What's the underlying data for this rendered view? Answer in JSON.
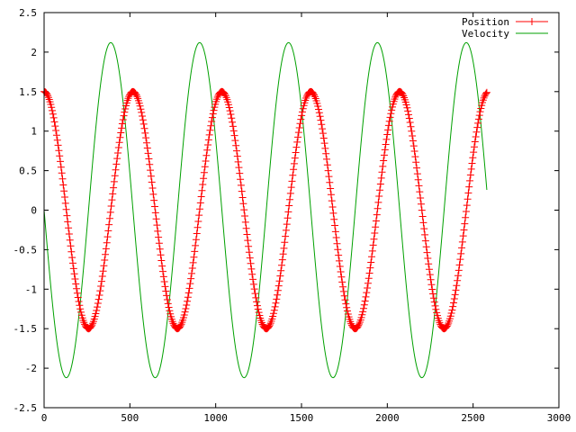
{
  "chart_data": {
    "type": "line",
    "title": "",
    "xlabel": "",
    "ylabel": "",
    "xlim": [
      0,
      3000
    ],
    "ylim": [
      -2.5,
      2.5
    ],
    "x_ticks": [
      0,
      500,
      1000,
      1500,
      2000,
      2500,
      3000
    ],
    "x_tick_labels": [
      "0",
      "500",
      "1000",
      "1500",
      "2000",
      "2500",
      "3000"
    ],
    "y_ticks": [
      -2.5,
      -2,
      -1.5,
      -1,
      -0.5,
      0,
      0.5,
      1,
      1.5,
      2,
      2.5
    ],
    "y_tick_labels": [
      "-2.5",
      "-2",
      "-1.5",
      "-1",
      "-0.5",
      "0",
      "0.5",
      "1",
      "1.5",
      "2",
      "2.5"
    ],
    "grid": false,
    "legend_position": "top-right",
    "series": [
      {
        "name": "Position",
        "color": "#ff0000",
        "style": "linespoints",
        "marker": "plus",
        "amplitude": 1.5,
        "period": 518,
        "x": [
          0,
          130,
          259,
          389,
          518,
          648,
          777,
          907,
          1036,
          1166,
          1295,
          1425,
          1554,
          1684,
          1813,
          1943,
          2072,
          2202,
          2331,
          2461,
          2580
        ],
        "values": [
          1.5,
          0,
          -1.5,
          0,
          1.5,
          0,
          -1.5,
          0,
          1.5,
          0,
          -1.5,
          0,
          1.5,
          0,
          -1.5,
          0,
          1.5,
          0,
          -1.5,
          0,
          1.5
        ]
      },
      {
        "name": "Velocity",
        "color": "#00a000",
        "style": "lines",
        "amplitude": 2.12,
        "period": 518,
        "x": [
          0,
          130,
          259,
          389,
          518,
          648,
          777,
          907,
          1036,
          1166,
          1295,
          1425,
          1554,
          1684,
          1813,
          1943,
          2072,
          2202,
          2331,
          2461,
          2580
        ],
        "values": [
          0,
          -2.12,
          0,
          2.12,
          0,
          -2.12,
          0,
          2.12,
          0,
          -2.12,
          0,
          2.12,
          0,
          -2.12,
          0,
          2.12,
          0,
          -2.12,
          0,
          2.12,
          0
        ]
      }
    ]
  }
}
